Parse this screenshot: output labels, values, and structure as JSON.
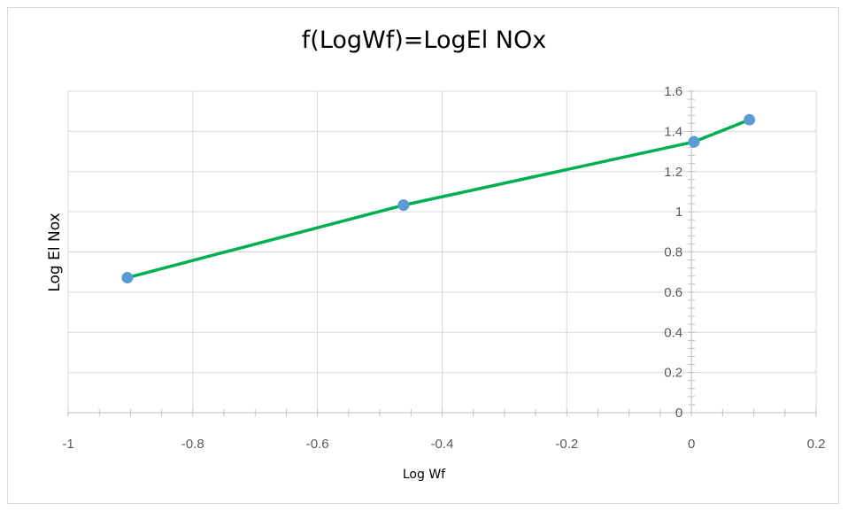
{
  "chart_data": {
    "type": "line",
    "title": "f(LogWf)=LogEl NOx",
    "xlabel": "Log Wf",
    "ylabel": "Log El Nox",
    "xlim": [
      -1,
      0.2
    ],
    "ylim": [
      0,
      1.6
    ],
    "x_ticks": [
      "-1",
      "-0.8",
      "-0.6",
      "-0.4",
      "-0.2",
      "0",
      "0.2"
    ],
    "y_ticks": [
      "0",
      "0.2",
      "0.4",
      "0.6",
      "0.8",
      "1",
      "1.2",
      "1.4",
      "1.6"
    ],
    "grid": true,
    "legend": "none",
    "series": [
      {
        "x": [
          -0.905,
          -0.462,
          0.004,
          0.093
        ],
        "y": [
          0.672,
          1.033,
          1.348,
          1.458
        ],
        "line_color": "#00b050",
        "marker_color": "#5b9bd5"
      }
    ]
  }
}
